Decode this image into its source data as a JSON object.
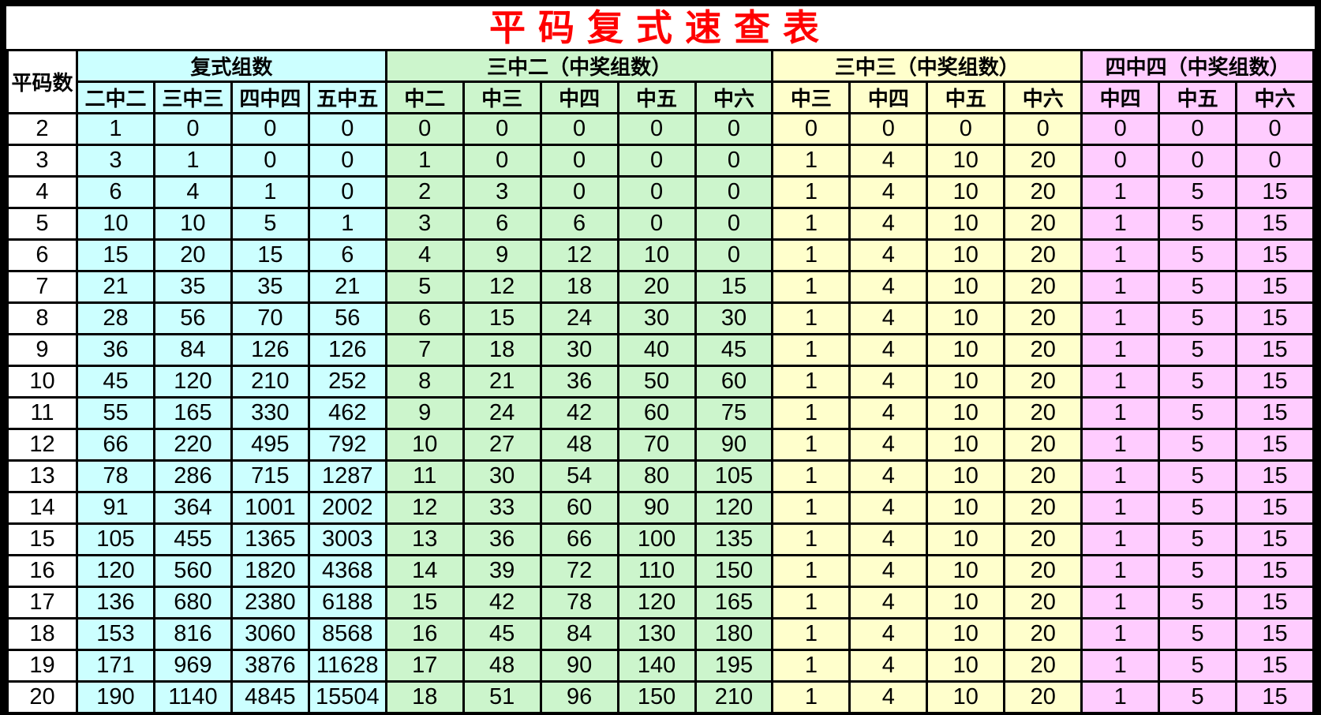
{
  "title": "平码复式速查表",
  "colors": {
    "title_red": "#ff0000",
    "border_black": "#000000",
    "white": "#ffffff",
    "cyan": "#ccffff",
    "green": "#ccf5cc",
    "yellow": "#ffffcc",
    "pink": "#ffccff"
  },
  "header": {
    "corner": "平码数",
    "groups": [
      {
        "label": "复式组数",
        "span": 4,
        "bg": "cyan"
      },
      {
        "label": "三中二（中奖组数）",
        "span": 5,
        "bg": "green"
      },
      {
        "label": "三中三（中奖组数）",
        "span": 4,
        "bg": "yellow"
      },
      {
        "label": "四中四（中奖组数）",
        "span": 3,
        "bg": "pink"
      }
    ],
    "subheaders": [
      {
        "label": "二中二",
        "bg": "cyan"
      },
      {
        "label": "三中三",
        "bg": "cyan"
      },
      {
        "label": "四中四",
        "bg": "cyan"
      },
      {
        "label": "五中五",
        "bg": "cyan"
      },
      {
        "label": "中二",
        "bg": "green"
      },
      {
        "label": "中三",
        "bg": "green"
      },
      {
        "label": "中四",
        "bg": "green"
      },
      {
        "label": "中五",
        "bg": "green"
      },
      {
        "label": "中六",
        "bg": "green"
      },
      {
        "label": "中三",
        "bg": "yellow"
      },
      {
        "label": "中四",
        "bg": "yellow"
      },
      {
        "label": "中五",
        "bg": "yellow"
      },
      {
        "label": "中六",
        "bg": "yellow"
      },
      {
        "label": "中四",
        "bg": "pink"
      },
      {
        "label": "中五",
        "bg": "pink"
      },
      {
        "label": "中六",
        "bg": "pink"
      }
    ]
  },
  "table": {
    "sections": [
      {
        "key": "fushi_zushu",
        "bg": "cyan"
      },
      {
        "key": "san_zhong_er",
        "bg": "green"
      },
      {
        "key": "san_zhong_san",
        "bg": "yellow"
      },
      {
        "key": "si_zhong_si",
        "bg": "pink"
      }
    ],
    "rows": [
      {
        "n": 2,
        "fushi_zushu": [
          1,
          0,
          0,
          0
        ],
        "san_zhong_er": [
          0,
          0,
          0,
          0,
          0
        ],
        "san_zhong_san": [
          0,
          0,
          0,
          0
        ],
        "si_zhong_si": [
          0,
          0,
          0
        ]
      },
      {
        "n": 3,
        "fushi_zushu": [
          3,
          1,
          0,
          0
        ],
        "san_zhong_er": [
          1,
          0,
          0,
          0,
          0
        ],
        "san_zhong_san": [
          1,
          4,
          10,
          20
        ],
        "si_zhong_si": [
          0,
          0,
          0
        ]
      },
      {
        "n": 4,
        "fushi_zushu": [
          6,
          4,
          1,
          0
        ],
        "san_zhong_er": [
          2,
          3,
          0,
          0,
          0
        ],
        "san_zhong_san": [
          1,
          4,
          10,
          20
        ],
        "si_zhong_si": [
          1,
          5,
          15
        ]
      },
      {
        "n": 5,
        "fushi_zushu": [
          10,
          10,
          5,
          1
        ],
        "san_zhong_er": [
          3,
          6,
          6,
          0,
          0
        ],
        "san_zhong_san": [
          1,
          4,
          10,
          20
        ],
        "si_zhong_si": [
          1,
          5,
          15
        ]
      },
      {
        "n": 6,
        "fushi_zushu": [
          15,
          20,
          15,
          6
        ],
        "san_zhong_er": [
          4,
          9,
          12,
          10,
          0
        ],
        "san_zhong_san": [
          1,
          4,
          10,
          20
        ],
        "si_zhong_si": [
          1,
          5,
          15
        ]
      },
      {
        "n": 7,
        "fushi_zushu": [
          21,
          35,
          35,
          21
        ],
        "san_zhong_er": [
          5,
          12,
          18,
          20,
          15
        ],
        "san_zhong_san": [
          1,
          4,
          10,
          20
        ],
        "si_zhong_si": [
          1,
          5,
          15
        ]
      },
      {
        "n": 8,
        "fushi_zushu": [
          28,
          56,
          70,
          56
        ],
        "san_zhong_er": [
          6,
          15,
          24,
          30,
          30
        ],
        "san_zhong_san": [
          1,
          4,
          10,
          20
        ],
        "si_zhong_si": [
          1,
          5,
          15
        ]
      },
      {
        "n": 9,
        "fushi_zushu": [
          36,
          84,
          126,
          126
        ],
        "san_zhong_er": [
          7,
          18,
          30,
          40,
          45
        ],
        "san_zhong_san": [
          1,
          4,
          10,
          20
        ],
        "si_zhong_si": [
          1,
          5,
          15
        ]
      },
      {
        "n": 10,
        "fushi_zushu": [
          45,
          120,
          210,
          252
        ],
        "san_zhong_er": [
          8,
          21,
          36,
          50,
          60
        ],
        "san_zhong_san": [
          1,
          4,
          10,
          20
        ],
        "si_zhong_si": [
          1,
          5,
          15
        ]
      },
      {
        "n": 11,
        "fushi_zushu": [
          55,
          165,
          330,
          462
        ],
        "san_zhong_er": [
          9,
          24,
          42,
          60,
          75
        ],
        "san_zhong_san": [
          1,
          4,
          10,
          20
        ],
        "si_zhong_si": [
          1,
          5,
          15
        ]
      },
      {
        "n": 12,
        "fushi_zushu": [
          66,
          220,
          495,
          792
        ],
        "san_zhong_er": [
          10,
          27,
          48,
          70,
          90
        ],
        "san_zhong_san": [
          1,
          4,
          10,
          20
        ],
        "si_zhong_si": [
          1,
          5,
          15
        ]
      },
      {
        "n": 13,
        "fushi_zushu": [
          78,
          286,
          715,
          1287
        ],
        "san_zhong_er": [
          11,
          30,
          54,
          80,
          105
        ],
        "san_zhong_san": [
          1,
          4,
          10,
          20
        ],
        "si_zhong_si": [
          1,
          5,
          15
        ]
      },
      {
        "n": 14,
        "fushi_zushu": [
          91,
          364,
          1001,
          2002
        ],
        "san_zhong_er": [
          12,
          33,
          60,
          90,
          120
        ],
        "san_zhong_san": [
          1,
          4,
          10,
          20
        ],
        "si_zhong_si": [
          1,
          5,
          15
        ]
      },
      {
        "n": 15,
        "fushi_zushu": [
          105,
          455,
          1365,
          3003
        ],
        "san_zhong_er": [
          13,
          36,
          66,
          100,
          135
        ],
        "san_zhong_san": [
          1,
          4,
          10,
          20
        ],
        "si_zhong_si": [
          1,
          5,
          15
        ]
      },
      {
        "n": 16,
        "fushi_zushu": [
          120,
          560,
          1820,
          4368
        ],
        "san_zhong_er": [
          14,
          39,
          72,
          110,
          150
        ],
        "san_zhong_san": [
          1,
          4,
          10,
          20
        ],
        "si_zhong_si": [
          1,
          5,
          15
        ]
      },
      {
        "n": 17,
        "fushi_zushu": [
          136,
          680,
          2380,
          6188
        ],
        "san_zhong_er": [
          15,
          42,
          78,
          120,
          165
        ],
        "san_zhong_san": [
          1,
          4,
          10,
          20
        ],
        "si_zhong_si": [
          1,
          5,
          15
        ]
      },
      {
        "n": 18,
        "fushi_zushu": [
          153,
          816,
          3060,
          8568
        ],
        "san_zhong_er": [
          16,
          45,
          84,
          130,
          180
        ],
        "san_zhong_san": [
          1,
          4,
          10,
          20
        ],
        "si_zhong_si": [
          1,
          5,
          15
        ]
      },
      {
        "n": 19,
        "fushi_zushu": [
          171,
          969,
          3876,
          11628
        ],
        "san_zhong_er": [
          17,
          48,
          90,
          140,
          195
        ],
        "san_zhong_san": [
          1,
          4,
          10,
          20
        ],
        "si_zhong_si": [
          1,
          5,
          15
        ]
      },
      {
        "n": 20,
        "fushi_zushu": [
          190,
          1140,
          4845,
          15504
        ],
        "san_zhong_er": [
          18,
          51,
          96,
          150,
          210
        ],
        "san_zhong_san": [
          1,
          4,
          10,
          20
        ],
        "si_zhong_si": [
          1,
          5,
          15
        ]
      }
    ]
  }
}
